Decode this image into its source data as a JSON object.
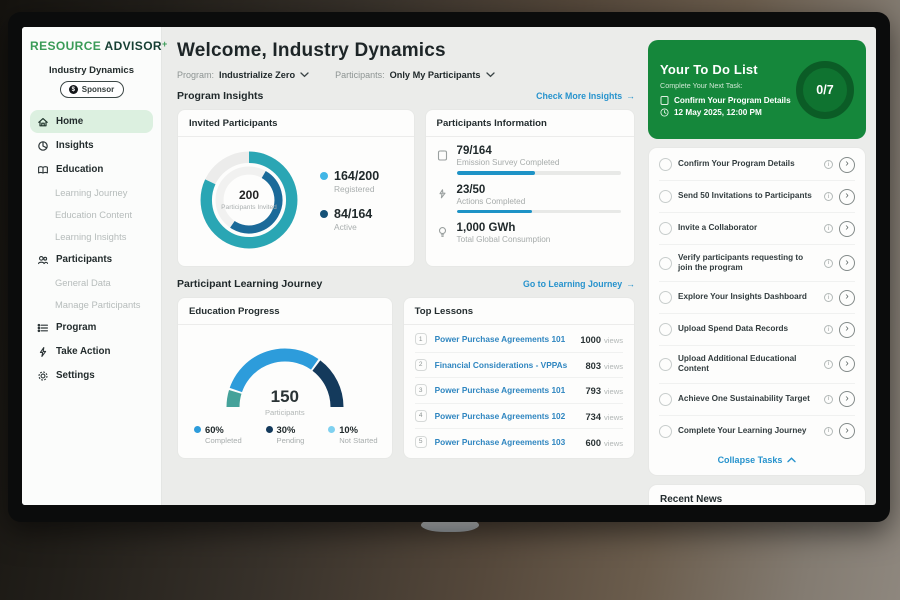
{
  "colors": {
    "brand_green": "#3a9b57",
    "panel_green": "#15873b",
    "panel_green_dark": "#0b5c26",
    "teal": "#2aa6b4",
    "dark_blue": "#1b6a99",
    "light_blue": "#41b6e6",
    "navy": "#143a5c",
    "gauge_teal": "#45a29a",
    "gauge_blue": "#2d9cdb",
    "link_blue": "#2793cd",
    "progress_fill": "#1e93c6",
    "active_nav_bg": "#dcf0e0"
  },
  "brand": {
    "logo_primary": "RESOURCE",
    "logo_secondary": "ADVISOR",
    "logo_plus": "+"
  },
  "sidebar": {
    "org": "Industry Dynamics",
    "badge": "Sponsor",
    "items": [
      {
        "label": "Home"
      },
      {
        "label": "Insights"
      },
      {
        "label": "Education"
      },
      {
        "label": "Learning Journey"
      },
      {
        "label": "Education Content"
      },
      {
        "label": "Learning Insights"
      },
      {
        "label": "Participants"
      },
      {
        "label": "General Data"
      },
      {
        "label": "Manage Participants"
      },
      {
        "label": "Program"
      },
      {
        "label": "Take Action"
      },
      {
        "label": "Settings"
      }
    ]
  },
  "header": {
    "title": "Welcome, Industry Dynamics",
    "program_label": "Program:",
    "program_value": "Industrialize Zero",
    "participants_label": "Participants:",
    "participants_value": "Only My Participants"
  },
  "insights": {
    "heading": "Program Insights",
    "link_label": "Check More Insights",
    "link_arrow": "→",
    "invited": {
      "title": "Invited Participants",
      "center_value": "200",
      "center_label": "Participants Invited",
      "legend": [
        {
          "value": "164/200",
          "label": "Registered"
        },
        {
          "value": "84/164",
          "label": "Active"
        }
      ]
    },
    "info": {
      "title": "Participants Information",
      "rows": [
        {
          "value": "79/164",
          "label": "Emission Survey Completed"
        },
        {
          "value": "23/50",
          "label": "Actions Completed"
        },
        {
          "value": "1,000 GWh",
          "label": "Total Global Consumption"
        }
      ]
    }
  },
  "journey": {
    "heading": "Participant Learning Journey",
    "link_label": "Go to Learning Journey",
    "link_arrow": "→",
    "education": {
      "title": "Education Progress",
      "center_value": "150",
      "center_label": "Participants",
      "legend": [
        {
          "pct": "60%",
          "label": "Completed"
        },
        {
          "pct": "30%",
          "label": "Pending"
        },
        {
          "pct": "10%",
          "label": "Not Started"
        }
      ]
    },
    "lessons": {
      "title": "Top Lessons",
      "views_suffix": "views",
      "rows": [
        {
          "rank": "1",
          "title": "Power Purchase Agreements 101",
          "views": "1000"
        },
        {
          "rank": "2",
          "title": "Financial Considerations - VPPAs",
          "views": "803"
        },
        {
          "rank": "3",
          "title": "Power Purchase Agreements 101",
          "views": "793"
        },
        {
          "rank": "4",
          "title": "Power Purchase Agreements 102",
          "views": "734"
        },
        {
          "rank": "5",
          "title": "Power Purchase Agreements 103",
          "views": "600"
        }
      ]
    }
  },
  "todo": {
    "title": "Your To Do List",
    "subtitle": "Complete Your Next Task:",
    "next_task": "Confirm Your Program Details",
    "due": "12 May 2025, 12:00 PM",
    "counter": "0/7",
    "tasks": [
      "Confirm Your Program Details",
      "Send 50 Invitations to Participants",
      "Invite a Collaborator",
      "Verify participants requesting to join the program",
      "Explore Your Insights Dashboard",
      "Upload Spend Data Records",
      "Upload Additional Educational Content",
      "Achieve One Sustainability Target",
      "Complete Your Learning Journey"
    ],
    "collapse_label": "Collapse Tasks"
  },
  "news": {
    "title": "Recent News"
  },
  "chart_data": [
    {
      "type": "donut",
      "title": "Invited Participants",
      "center_value": 200,
      "center_label": "Participants Invited",
      "series": [
        {
          "name": "Registered",
          "value": 164,
          "total": 200,
          "ring_color": "#2aa6b4",
          "legend_dot_color": "#41b6e6"
        },
        {
          "name": "Active",
          "value": 84,
          "total": 164,
          "ring_color": "#1b6a99",
          "legend_dot_color": "#155177"
        }
      ],
      "track_color": "#ececeb"
    },
    {
      "type": "gauge",
      "title": "Education Progress",
      "center_value": 150,
      "center_label": "Participants",
      "segments": [
        {
          "name": "Not Started",
          "pct": 10,
          "color": "#45a29a"
        },
        {
          "name": "Completed",
          "pct": 60,
          "color": "#2d9cdb"
        },
        {
          "name": "Pending",
          "pct": 30,
          "color": "#143a5c"
        }
      ],
      "legend": [
        {
          "name": "Completed",
          "pct": 60,
          "dot_color": "#2d9cdb"
        },
        {
          "name": "Pending",
          "pct": 30,
          "dot_color": "#143a5c"
        },
        {
          "name": "Not Started",
          "pct": 10,
          "dot_color": "#7fd1f0"
        }
      ]
    },
    {
      "type": "progress",
      "title": "Participants Information",
      "metrics": [
        {
          "label": "Emission Survey Completed",
          "value": 79,
          "total": 164,
          "pct": 48
        },
        {
          "label": "Actions Completed",
          "value": 23,
          "total": 50,
          "pct": 46
        },
        {
          "label": "Total Global Consumption",
          "value": 1000,
          "unit": "GWh"
        }
      ]
    }
  ]
}
